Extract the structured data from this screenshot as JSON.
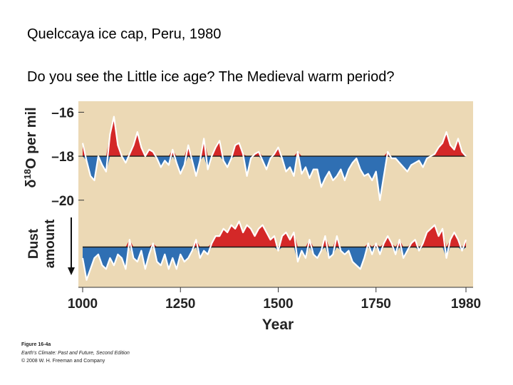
{
  "slide": {
    "heading": "Quelccaya ice cap, Peru, 1980",
    "question": "Do you see the Little ice age? The Medieval warm period?"
  },
  "caption": {
    "figure": "Figure 16-4a",
    "book": "Earth's Climate: Past and Future, Second Edition",
    "copyright": "© 2008 W. H. Freeman and Company"
  },
  "colors": {
    "panel": "#ecd9b5",
    "warm": "#d42828",
    "cold": "#2f6fb3",
    "baseline": "#1a1a1a"
  },
  "chart_data": {
    "type": "area",
    "xlabel": "Year",
    "xticks": [
      1000,
      1250,
      1500,
      1750,
      1980
    ],
    "xlim": [
      1000,
      1980
    ],
    "series": [
      {
        "name": "δ18O per mil",
        "axis_label": "δ18O per mil",
        "baseline": -18,
        "ylim": [
          -20.3,
          -15.5
        ],
        "yticks": [
          -16,
          -18,
          -20
        ],
        "x": [
          1000,
          1010,
          1020,
          1030,
          1040,
          1050,
          1060,
          1070,
          1080,
          1090,
          1100,
          1110,
          1120,
          1130,
          1140,
          1150,
          1160,
          1170,
          1180,
          1190,
          1200,
          1210,
          1220,
          1230,
          1240,
          1250,
          1260,
          1270,
          1280,
          1290,
          1300,
          1310,
          1320,
          1330,
          1340,
          1350,
          1360,
          1370,
          1380,
          1390,
          1400,
          1410,
          1420,
          1430,
          1440,
          1450,
          1460,
          1470,
          1480,
          1490,
          1500,
          1510,
          1520,
          1530,
          1540,
          1550,
          1560,
          1570,
          1580,
          1590,
          1600,
          1610,
          1620,
          1630,
          1640,
          1650,
          1660,
          1670,
          1680,
          1690,
          1700,
          1710,
          1720,
          1730,
          1740,
          1750,
          1760,
          1770,
          1780,
          1790,
          1800,
          1810,
          1820,
          1830,
          1840,
          1850,
          1860,
          1870,
          1880,
          1890,
          1900,
          1910,
          1920,
          1930,
          1940,
          1950,
          1960,
          1970,
          1980
        ],
        "values": [
          -17.4,
          -18.2,
          -18.9,
          -19.1,
          -18.0,
          -18.4,
          -18.7,
          -17.0,
          -16.2,
          -17.5,
          -18.0,
          -18.3,
          -17.9,
          -17.5,
          -16.9,
          -17.6,
          -18.0,
          -17.7,
          -17.8,
          -18.1,
          -18.5,
          -18.2,
          -18.4,
          -17.7,
          -18.3,
          -18.8,
          -18.4,
          -17.5,
          -18.2,
          -18.9,
          -18.2,
          -17.2,
          -18.6,
          -18.0,
          -17.6,
          -17.3,
          -18.2,
          -18.5,
          -18.1,
          -17.5,
          -17.4,
          -17.9,
          -18.9,
          -18.1,
          -17.9,
          -17.8,
          -18.2,
          -18.6,
          -18.1,
          -17.9,
          -17.6,
          -18.1,
          -18.7,
          -18.5,
          -18.9,
          -17.8,
          -18.8,
          -18.5,
          -19.0,
          -18.6,
          -18.6,
          -19.4,
          -19.0,
          -18.7,
          -19.1,
          -18.9,
          -18.6,
          -19.1,
          -18.6,
          -18.3,
          -18.1,
          -18.6,
          -18.9,
          -18.8,
          -19.1,
          -18.7,
          -20.0,
          -18.9,
          -17.8,
          -18.1,
          -18.1,
          -18.3,
          -18.5,
          -18.7,
          -18.4,
          -18.3,
          -18.2,
          -18.5,
          -18.1,
          -18.0,
          -17.9,
          -17.6,
          -17.4,
          -16.9,
          -17.5,
          -17.7,
          -17.2,
          -17.8,
          -18.0
        ]
      },
      {
        "name": "Dust amount",
        "axis_label": "Dust amount",
        "axis_direction": "increasing downward",
        "baseline": 0,
        "ylim": [
          1.1,
          -1.1
        ],
        "yticks": [],
        "x": [
          1000,
          1010,
          1020,
          1030,
          1040,
          1050,
          1060,
          1070,
          1080,
          1090,
          1100,
          1110,
          1120,
          1130,
          1140,
          1150,
          1160,
          1170,
          1180,
          1190,
          1200,
          1210,
          1220,
          1230,
          1240,
          1250,
          1260,
          1270,
          1280,
          1290,
          1300,
          1310,
          1320,
          1330,
          1340,
          1350,
          1360,
          1370,
          1380,
          1390,
          1400,
          1410,
          1420,
          1430,
          1440,
          1450,
          1460,
          1470,
          1480,
          1490,
          1500,
          1510,
          1520,
          1530,
          1540,
          1550,
          1560,
          1570,
          1580,
          1590,
          1600,
          1610,
          1620,
          1630,
          1640,
          1650,
          1660,
          1670,
          1680,
          1690,
          1700,
          1710,
          1720,
          1730,
          1740,
          1750,
          1760,
          1770,
          1780,
          1790,
          1800,
          1810,
          1820,
          1830,
          1840,
          1850,
          1860,
          1870,
          1880,
          1890,
          1900,
          1910,
          1920,
          1930,
          1940,
          1950,
          1960,
          1970,
          1980
        ],
        "values": [
          0.3,
          0.9,
          0.6,
          0.3,
          0.2,
          0.5,
          0.6,
          0.3,
          0.5,
          0.2,
          0.3,
          0.6,
          -0.2,
          0.3,
          0.4,
          0.1,
          0.6,
          0.2,
          -0.1,
          0.4,
          0.5,
          0.2,
          0.6,
          0.3,
          0.6,
          0.2,
          0.4,
          0.3,
          0.1,
          -0.2,
          0.3,
          0.1,
          0.2,
          -0.1,
          -0.3,
          -0.3,
          -0.5,
          -0.4,
          -0.6,
          -0.5,
          -0.7,
          -0.4,
          -0.6,
          -0.5,
          -0.3,
          -0.5,
          -0.6,
          -0.4,
          -0.2,
          -0.3,
          0.1,
          -0.3,
          -0.4,
          -0.2,
          -0.4,
          0.4,
          0.1,
          0.3,
          -0.2,
          0.2,
          0.3,
          0.1,
          -0.3,
          0.3,
          0.2,
          -0.3,
          0.1,
          0.2,
          0.1,
          0.4,
          0.5,
          0.6,
          0.3,
          -0.1,
          0.2,
          -0.1,
          0.2,
          -0.1,
          -0.3,
          -0.1,
          0.2,
          -0.2,
          0.3,
          0.1,
          -0.1,
          -0.2,
          0.1,
          -0.1,
          -0.4,
          -0.5,
          -0.6,
          -0.3,
          -0.5,
          0.3,
          -0.2,
          -0.4,
          -0.2,
          0.1,
          -0.2
        ]
      }
    ]
  }
}
